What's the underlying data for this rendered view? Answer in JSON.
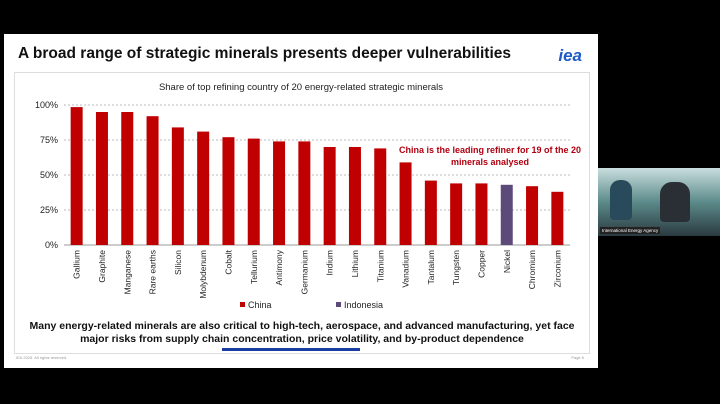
{
  "slide": {
    "title": "A broad range of strategic minerals presents deeper vulnerabilities",
    "logo": "iea",
    "caption": "Many energy-related minerals are also critical to high-tech, aerospace, and advanced manufacturing, yet face major risks from supply chain concentration, price volatility, and by-product dependence",
    "copyright": "IEA 2025. All rights reserved.",
    "page": "Page 6"
  },
  "video": {
    "label": "International Energy Agency"
  },
  "chart_data": {
    "type": "bar",
    "title": "Share of top refining country of 20 energy-related strategic minerals",
    "annotation": "China is the leading refiner for 19 of the 20 minerals analysed",
    "categories": [
      "Gallium",
      "Graphite",
      "Manganese",
      "Rare earths",
      "Silicon",
      "Molybdenum",
      "Cobalt",
      "Tellurium",
      "Antimony",
      "Germanium",
      "Indium",
      "Lithium",
      "Titanium",
      "Vanadium",
      "Tantalum",
      "Tungsten",
      "Copper",
      "Nickel",
      "Chromium",
      "Zirconium"
    ],
    "values": [
      98.5,
      95,
      95,
      92,
      84,
      81,
      77,
      76,
      74,
      74,
      70,
      70,
      69,
      59,
      46,
      44,
      44,
      43,
      42,
      38
    ],
    "country": [
      "China",
      "China",
      "China",
      "China",
      "China",
      "China",
      "China",
      "China",
      "China",
      "China",
      "China",
      "China",
      "China",
      "China",
      "China",
      "China",
      "China",
      "Indonesia",
      "China",
      "China"
    ],
    "legend": [
      {
        "name": "China",
        "color": "#c00000"
      },
      {
        "name": "Indonesia",
        "color": "#5b4a7a"
      }
    ],
    "yticks": [
      "0%",
      "25%",
      "50%",
      "75%",
      "100%"
    ],
    "ylim": [
      0,
      100
    ],
    "grid": true,
    "legend_placement": "bottom"
  }
}
